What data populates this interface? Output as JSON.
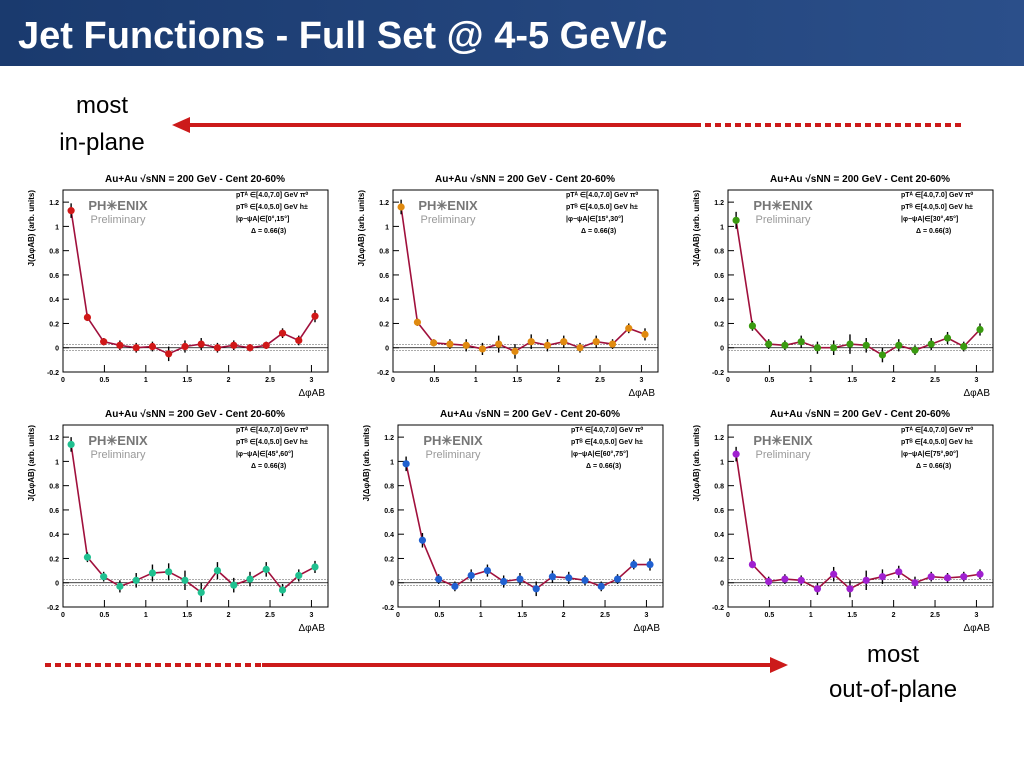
{
  "slide": {
    "title": "Jet Functions - Full Set @ 4-5 GeV/c",
    "top_note": [
      "most",
      "in-plane"
    ],
    "bottom_note": [
      "most",
      "out-of-plane"
    ]
  },
  "chart_data": [
    {
      "type": "line",
      "title": "Au+Au √sNN = 200 GeV - Cent 20-60%",
      "logo": "PH✳ENIX",
      "watermark": "Preliminary",
      "legend_lines": [
        "pTᴬ ∈[4.0,7.0] GeV π⁰",
        "pTᴮ ∈[4.0,5.0] GeV h±",
        "|φ−ψA|∈[0°,15°]",
        "Δ = 0.66(3)"
      ],
      "x_label": "ΔφAB",
      "y_label": "J(ΔφAB) (arb. units)",
      "line_color": "#a0103c",
      "x": [
        0.098,
        0.295,
        0.491,
        0.687,
        0.884,
        1.08,
        1.276,
        1.473,
        1.669,
        1.865,
        2.062,
        2.258,
        2.454,
        2.651,
        2.847,
        3.043
      ],
      "series": [
        {
          "color": "#d01818",
          "values": [
            1.13,
            0.25,
            0.05,
            0.02,
            0.0,
            0.01,
            -0.05,
            0.01,
            0.03,
            0.0,
            0.02,
            0.0,
            0.02,
            0.12,
            0.06,
            0.26
          ],
          "errors": [
            0.06,
            0.03,
            0.03,
            0.04,
            0.04,
            0.04,
            0.06,
            0.05,
            0.05,
            0.04,
            0.04,
            0.03,
            0.03,
            0.04,
            0.04,
            0.05
          ]
        }
      ],
      "xlim": [
        0,
        3.2
      ],
      "xticks": [
        0,
        0.5,
        1,
        1.5,
        2,
        2.5,
        3
      ],
      "ylim": [
        -0.2,
        1.3
      ],
      "yticks": [
        -0.2,
        0,
        0.2,
        0.4,
        0.6,
        0.8,
        1,
        1.2
      ]
    },
    {
      "type": "line",
      "title": "Au+Au √sNN = 200 GeV - Cent 20-60%",
      "logo": "PH✳ENIX",
      "watermark": "Preliminary",
      "legend_lines": [
        "pTᴬ ∈[4.0,7.0] GeV π⁰",
        "pTᴮ ∈[4.0,5.0] GeV h±",
        "|φ−ψA|∈[15°,30°]",
        "Δ = 0.66(3)"
      ],
      "x_label": "ΔφAB",
      "y_label": "J(ΔφAB) (arb. units)",
      "line_color": "#a0103c",
      "x": [
        0.098,
        0.295,
        0.491,
        0.687,
        0.884,
        1.08,
        1.276,
        1.473,
        1.669,
        1.865,
        2.062,
        2.258,
        2.454,
        2.651,
        2.847,
        3.043
      ],
      "series": [
        {
          "color": "#e08a10",
          "values": [
            1.16,
            0.21,
            0.04,
            0.03,
            0.02,
            -0.01,
            0.03,
            -0.03,
            0.05,
            0.02,
            0.05,
            0.0,
            0.05,
            0.03,
            0.16,
            0.11
          ],
          "errors": [
            0.06,
            0.03,
            0.03,
            0.04,
            0.05,
            0.05,
            0.07,
            0.06,
            0.06,
            0.05,
            0.05,
            0.04,
            0.05,
            0.04,
            0.04,
            0.05
          ]
        }
      ],
      "xlim": [
        0,
        3.2
      ],
      "xticks": [
        0,
        0.5,
        1,
        1.5,
        2,
        2.5,
        3
      ],
      "ylim": [
        -0.2,
        1.3
      ],
      "yticks": [
        -0.2,
        0,
        0.2,
        0.4,
        0.6,
        0.8,
        1,
        1.2
      ]
    },
    {
      "type": "line",
      "title": "Au+Au √sNN = 200 GeV - Cent 20-60%",
      "logo": "PH✳ENIX",
      "watermark": "Preliminary",
      "legend_lines": [
        "pTᴬ ∈[4.0,7.0] GeV π⁰",
        "pTᴮ ∈[4.0,5.0] GeV h±",
        "|φ−ψA|∈[30°,45°]",
        "Δ = 0.66(3)"
      ],
      "x_label": "ΔφAB",
      "y_label": "J(ΔφAB) (arb. units)",
      "line_color": "#a0103c",
      "x": [
        0.098,
        0.295,
        0.491,
        0.687,
        0.884,
        1.08,
        1.276,
        1.473,
        1.669,
        1.865,
        2.062,
        2.258,
        2.454,
        2.651,
        2.847,
        3.043
      ],
      "series": [
        {
          "color": "#3a9a10",
          "values": [
            1.05,
            0.18,
            0.03,
            0.02,
            0.05,
            0.0,
            0.0,
            0.03,
            0.02,
            -0.06,
            0.02,
            -0.02,
            0.03,
            0.08,
            0.01,
            0.15
          ],
          "errors": [
            0.07,
            0.04,
            0.04,
            0.04,
            0.05,
            0.05,
            0.06,
            0.08,
            0.06,
            0.06,
            0.05,
            0.04,
            0.05,
            0.05,
            0.04,
            0.05
          ]
        }
      ],
      "xlim": [
        0,
        3.2
      ],
      "xticks": [
        0,
        0.5,
        1,
        1.5,
        2,
        2.5,
        3
      ],
      "ylim": [
        -0.2,
        1.3
      ],
      "yticks": [
        -0.2,
        0,
        0.2,
        0.4,
        0.6,
        0.8,
        1,
        1.2
      ]
    },
    {
      "type": "line",
      "title": "Au+Au √sNN = 200 GeV - Cent 20-60%",
      "logo": "PH✳ENIX",
      "watermark": "Preliminary",
      "legend_lines": [
        "pTᴬ ∈[4.0,7.0] GeV π⁰",
        "pTᴮ ∈[4.0,5.0] GeV h±",
        "|φ−ψA|∈[45°,60°]",
        "Δ = 0.66(3)"
      ],
      "x_label": "ΔφAB",
      "y_label": "J(ΔφAB) (arb. units)",
      "line_color": "#a0103c",
      "x": [
        0.098,
        0.295,
        0.491,
        0.687,
        0.884,
        1.08,
        1.276,
        1.473,
        1.669,
        1.865,
        2.062,
        2.258,
        2.454,
        2.651,
        2.847,
        3.043
      ],
      "series": [
        {
          "color": "#20c090",
          "values": [
            1.14,
            0.21,
            0.05,
            -0.03,
            0.02,
            0.08,
            0.09,
            0.02,
            -0.08,
            0.1,
            -0.02,
            0.03,
            0.11,
            -0.06,
            0.06,
            0.13
          ],
          "errors": [
            0.06,
            0.04,
            0.04,
            0.05,
            0.06,
            0.07,
            0.07,
            0.08,
            0.08,
            0.07,
            0.06,
            0.06,
            0.06,
            0.05,
            0.05,
            0.05
          ]
        }
      ],
      "xlim": [
        0,
        3.2
      ],
      "xticks": [
        0,
        0.5,
        1,
        1.5,
        2,
        2.5,
        3
      ],
      "ylim": [
        -0.2,
        1.3
      ],
      "yticks": [
        -0.2,
        0,
        0.2,
        0.4,
        0.6,
        0.8,
        1,
        1.2
      ]
    },
    {
      "type": "line",
      "title": "Au+Au √sNN = 200 GeV - Cent 20-60%",
      "logo": "PH✳ENIX",
      "watermark": "Preliminary",
      "legend_lines": [
        "pTᴬ ∈[4.0,7.0] GeV π⁰",
        "pTᴮ ∈[4.0,5.0] GeV h±",
        "|φ−ψA|∈[60°,75°]",
        "Δ = 0.66(3)"
      ],
      "x_label": "ΔφAB",
      "y_label": "J(ΔφAB) (arb. units)",
      "line_color": "#a0103c",
      "x": [
        0.098,
        0.295,
        0.491,
        0.687,
        0.884,
        1.08,
        1.276,
        1.473,
        1.669,
        1.865,
        2.062,
        2.258,
        2.454,
        2.651,
        2.847,
        3.043
      ],
      "series": [
        {
          "color": "#2060d0",
          "values": [
            0.98,
            0.35,
            0.03,
            -0.03,
            0.06,
            0.1,
            0.01,
            0.03,
            -0.05,
            0.05,
            0.04,
            0.02,
            -0.03,
            0.03,
            0.15,
            0.15
          ],
          "errors": [
            0.06,
            0.06,
            0.04,
            0.04,
            0.05,
            0.05,
            0.05,
            0.05,
            0.06,
            0.05,
            0.05,
            0.04,
            0.04,
            0.04,
            0.04,
            0.05
          ]
        }
      ],
      "xlim": [
        0,
        3.2
      ],
      "xticks": [
        0,
        0.5,
        1,
        1.5,
        2,
        2.5,
        3
      ],
      "ylim": [
        -0.2,
        1.3
      ],
      "yticks": [
        -0.2,
        0,
        0.2,
        0.4,
        0.6,
        0.8,
        1,
        1.2
      ]
    },
    {
      "type": "line",
      "title": "Au+Au √sNN = 200 GeV - Cent 20-60%",
      "logo": "PH✳ENIX",
      "watermark": "Preliminary",
      "legend_lines": [
        "pTᴬ ∈[4.0,7.0] GeV π⁰",
        "pTᴮ ∈[4.0,5.0] GeV h±",
        "|φ−ψA|∈[75°,90°]",
        "Δ = 0.66(3)"
      ],
      "x_label": "ΔφAB",
      "y_label": "J(ΔφAB) (arb. units)",
      "line_color": "#a0103c",
      "x": [
        0.098,
        0.295,
        0.491,
        0.687,
        0.884,
        1.08,
        1.276,
        1.473,
        1.669,
        1.865,
        2.062,
        2.258,
        2.454,
        2.651,
        2.847,
        3.043
      ],
      "series": [
        {
          "color": "#a020d0",
          "values": [
            1.06,
            0.15,
            0.01,
            0.03,
            0.02,
            -0.05,
            0.07,
            -0.05,
            0.02,
            0.05,
            0.09,
            0.0,
            0.05,
            0.04,
            0.05,
            0.07
          ],
          "errors": [
            0.06,
            0.03,
            0.04,
            0.04,
            0.04,
            0.05,
            0.06,
            0.07,
            0.08,
            0.06,
            0.05,
            0.05,
            0.04,
            0.04,
            0.04,
            0.04
          ]
        }
      ],
      "xlim": [
        0,
        3.2
      ],
      "xticks": [
        0,
        0.5,
        1,
        1.5,
        2,
        2.5,
        3
      ],
      "ylim": [
        -0.2,
        1.3
      ],
      "yticks": [
        -0.2,
        0,
        0.2,
        0.4,
        0.6,
        0.8,
        1,
        1.2
      ]
    }
  ]
}
